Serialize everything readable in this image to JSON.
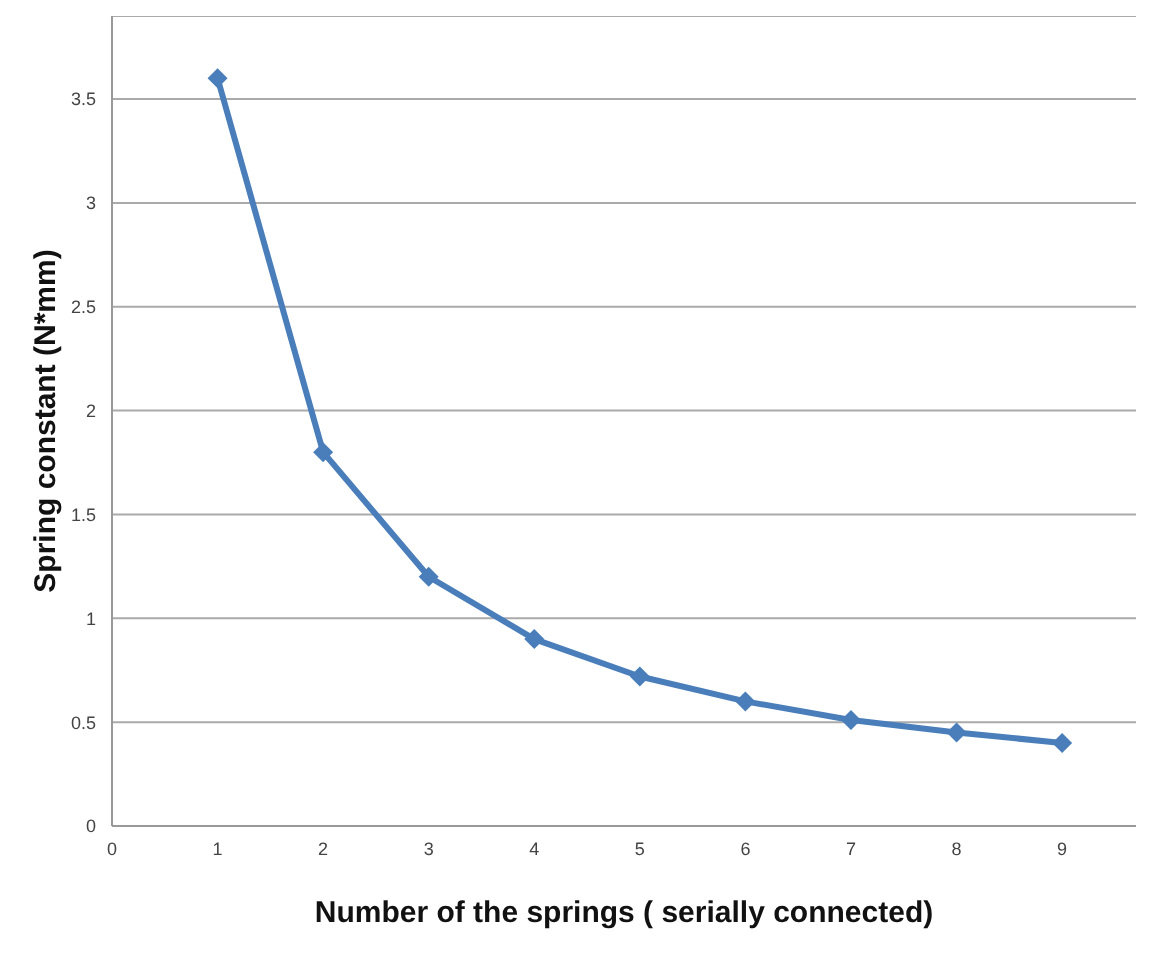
{
  "chart_data": {
    "type": "line",
    "xlabel": "Number of the springs ( serially connected)",
    "ylabel": "Spring constant (N*mm)",
    "x": [
      1,
      2,
      3,
      4,
      5,
      6,
      7,
      8,
      9
    ],
    "series": [
      {
        "color": "#4a7ebb",
        "values": [
          3.6,
          1.8,
          1.2,
          0.9,
          0.72,
          0.6,
          0.51,
          0.45,
          0.4
        ]
      }
    ],
    "xlim": [
      0,
      9.7
    ],
    "xticks": [
      0,
      1,
      2,
      3,
      4,
      5,
      6,
      7,
      8,
      9
    ],
    "ylim": [
      0,
      3.9
    ],
    "yticks": [
      0,
      0.5,
      1,
      1.5,
      2,
      2.5,
      3,
      3.5
    ],
    "grid": "y",
    "marker": "diamond",
    "line_style": "solid",
    "legend": false
  }
}
